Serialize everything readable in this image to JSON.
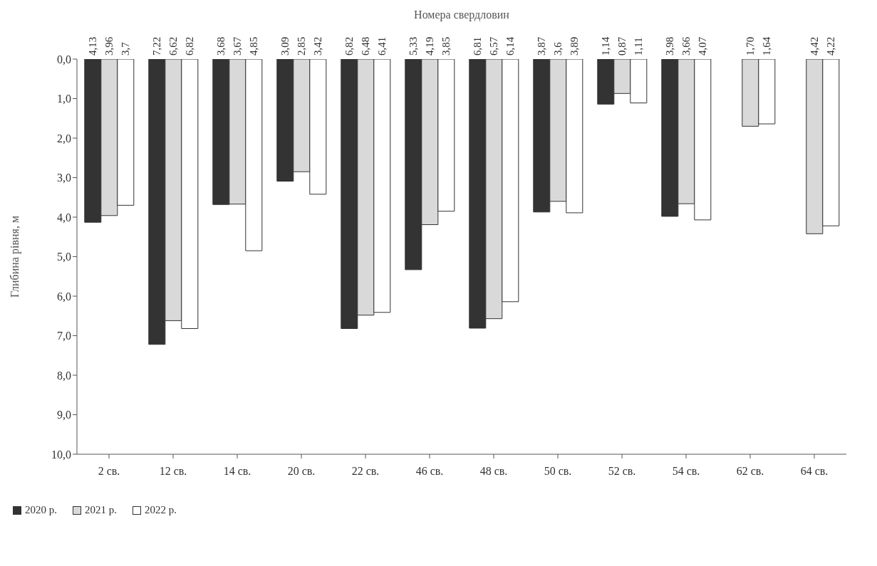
{
  "chart_data": {
    "type": "bar",
    "title": "Номера свердловин",
    "ylabel": "Глибина рівня, м",
    "categories": [
      "2 св.",
      "12 св.",
      "14 св.",
      "20 св.",
      "22 св.",
      "46 св.",
      "48 св.",
      "50 св.",
      "52 св.",
      "54 св.",
      "62 св.",
      "64 св."
    ],
    "series": [
      {
        "name": "2020 р.",
        "color": "#333333",
        "values": [
          4.13,
          7.22,
          3.68,
          3.09,
          6.82,
          5.33,
          6.81,
          3.87,
          1.14,
          3.98,
          null,
          null
        ],
        "value_labels": [
          "4,13",
          "7,22",
          "3,68",
          "3,09",
          "6,82",
          "5,33",
          "6,81",
          "3,87",
          "1,14",
          "3,98",
          null,
          null
        ]
      },
      {
        "name": "2021 р.",
        "color": "#d9d9d9",
        "values": [
          3.96,
          6.62,
          3.67,
          2.85,
          6.48,
          4.19,
          6.57,
          3.6,
          0.87,
          3.66,
          1.7,
          4.42
        ],
        "value_labels": [
          "3,96",
          "6,62",
          "3,67",
          "2,85",
          "6,48",
          "4,19",
          "6,57",
          "3,6",
          "0,87",
          "3,66",
          "1,70",
          "4,42"
        ]
      },
      {
        "name": "2022 р.",
        "color": "#ffffff",
        "values": [
          3.7,
          6.82,
          4.85,
          3.42,
          6.41,
          3.85,
          6.14,
          3.89,
          1.11,
          4.07,
          1.64,
          4.22
        ],
        "value_labels": [
          "3,7",
          "6,82",
          "4,85",
          "3,42",
          "6,41",
          "3,85",
          "6,14",
          "3,89",
          "1,11",
          "4,07",
          "1,64",
          "4,22"
        ]
      }
    ],
    "ylim": [
      10,
      0
    ],
    "yticks": [
      {
        "value": 0,
        "label": "0,0"
      },
      {
        "value": 1,
        "label": "1,0"
      },
      {
        "value": 2,
        "label": "2,0"
      },
      {
        "value": 3,
        "label": "3,0"
      },
      {
        "value": 4,
        "label": "4,0"
      },
      {
        "value": 5,
        "label": "5,0"
      },
      {
        "value": 6,
        "label": "6,0"
      },
      {
        "value": 7,
        "label": "7,0"
      },
      {
        "value": 8,
        "label": "8,0"
      },
      {
        "value": 9,
        "label": "9,0"
      },
      {
        "value": 10,
        "label": "10,0"
      }
    ],
    "grid": false,
    "legend": "bottom left"
  }
}
